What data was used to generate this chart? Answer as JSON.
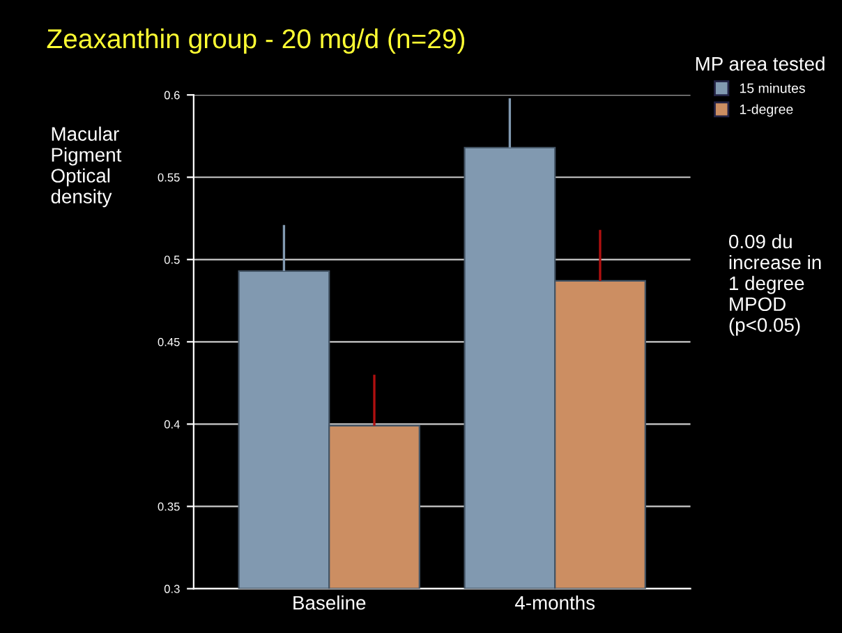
{
  "chart_data": {
    "type": "bar",
    "title": "Zeaxanthin group - 20 mg/d (n=29)",
    "ylabel": "Macular\nPigment\nOptical\ndensity",
    "legend_title": "MP area tested",
    "categories": [
      "Baseline",
      "4-months"
    ],
    "series": [
      {
        "name": "15 minutes",
        "color": "#8199b0",
        "values": [
          0.493,
          0.568
        ],
        "errors": [
          [
            0.493,
            0.521
          ],
          [
            0.568,
            0.598
          ]
        ]
      },
      {
        "name": "1-degree",
        "color": "#cc8e62",
        "values": [
          0.399,
          0.487
        ],
        "errors": [
          [
            0.399,
            0.43
          ],
          [
            0.487,
            0.518
          ]
        ]
      }
    ],
    "ylim": [
      0.3,
      0.6
    ],
    "yticks": [
      0.3,
      0.35,
      0.4,
      0.45,
      0.5,
      0.55,
      0.6
    ],
    "grid": "y",
    "legend": "top right",
    "annotations": [
      "0.09 du\nincrease in\n1 degree\nMPOD\n(p<0.05)"
    ]
  }
}
